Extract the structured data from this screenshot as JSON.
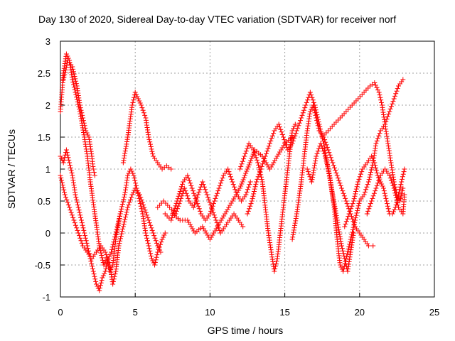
{
  "chart_data": {
    "type": "scatter",
    "title": "Day 130 of 2020, Sidereal Day-to-day VTEC variation (SDTVAR) for receiver norf",
    "xlabel": "GPS time / hours",
    "ylabel": "SDTVAR / TECUs",
    "xlim": [
      0,
      25
    ],
    "ylim": [
      -1,
      3
    ],
    "xticks": [
      "0",
      "5",
      "10",
      "15",
      "20",
      "25"
    ],
    "yticks": [
      "-1",
      "-0.5",
      "0",
      "0.5",
      "1",
      "1.5",
      "2",
      "2.5",
      "3"
    ],
    "grid": true,
    "marker": "+",
    "color": "#ff0000",
    "series": [
      {
        "name": "track-1",
        "points": [
          [
            0,
            1.9
          ],
          [
            0.2,
            2.5
          ],
          [
            0.4,
            2.8
          ],
          [
            0.6,
            2.7
          ],
          [
            0.8,
            2.4
          ],
          [
            1.0,
            2.2
          ],
          [
            1.3,
            1.9
          ],
          [
            1.6,
            1.5
          ],
          [
            1.8,
            1.2
          ],
          [
            2.0,
            0.8
          ],
          [
            2.3,
            0.3
          ],
          [
            2.6,
            -0.2
          ],
          [
            2.9,
            -0.5
          ],
          [
            3.1,
            -0.4
          ],
          [
            3.3,
            -0.6
          ],
          [
            3.5,
            -0.5
          ],
          [
            3.7,
            -0.1
          ],
          [
            4.0,
            0.3
          ],
          [
            4.3,
            0.6
          ],
          [
            4.5,
            0.9
          ],
          [
            4.7,
            1.0
          ],
          [
            4.9,
            0.9
          ],
          [
            5.1,
            0.7
          ],
          [
            5.3,
            0.5
          ],
          [
            5.5,
            0.3
          ],
          [
            5.7,
            0.0
          ],
          [
            5.9,
            -0.2
          ],
          [
            6.1,
            -0.4
          ],
          [
            6.3,
            -0.5
          ],
          [
            6.5,
            -0.3
          ],
          [
            6.8,
            -0.1
          ],
          [
            7.0,
            0.0
          ]
        ]
      },
      {
        "name": "track-2",
        "points": [
          [
            0,
            0.9
          ],
          [
            0.3,
            0.6
          ],
          [
            0.6,
            0.4
          ],
          [
            0.9,
            0.2
          ],
          [
            1.2,
            0.0
          ],
          [
            1.5,
            -0.2
          ],
          [
            1.8,
            -0.3
          ],
          [
            2.1,
            -0.4
          ],
          [
            2.4,
            -0.3
          ],
          [
            2.7,
            -0.2
          ],
          [
            3.0,
            -0.3
          ],
          [
            3.3,
            -0.5
          ],
          [
            3.5,
            -0.8
          ],
          [
            3.7,
            -0.6
          ],
          [
            3.9,
            -0.2
          ],
          [
            4.2,
            0.1
          ],
          [
            4.5,
            0.4
          ],
          [
            4.8,
            0.6
          ],
          [
            5.0,
            0.7
          ],
          [
            5.3,
            0.6
          ],
          [
            5.6,
            0.4
          ],
          [
            5.9,
            0.2
          ],
          [
            6.2,
            0.0
          ],
          [
            6.5,
            -0.2
          ],
          [
            6.7,
            -0.3
          ]
        ]
      },
      {
        "name": "track-3",
        "points": [
          [
            0,
            1.2
          ],
          [
            0.2,
            1.1
          ],
          [
            0.4,
            1.3
          ],
          [
            0.6,
            1.1
          ],
          [
            0.8,
            0.9
          ],
          [
            1.0,
            0.6
          ],
          [
            1.2,
            0.4
          ],
          [
            1.4,
            0.2
          ],
          [
            1.6,
            0.0
          ],
          [
            1.8,
            -0.2
          ],
          [
            2.0,
            -0.4
          ],
          [
            2.2,
            -0.6
          ],
          [
            2.4,
            -0.8
          ],
          [
            2.6,
            -0.9
          ],
          [
            2.8,
            -0.7
          ],
          [
            3.0,
            -0.6
          ],
          [
            3.2,
            -0.4
          ],
          [
            3.4,
            -0.3
          ],
          [
            3.6,
            -0.1
          ],
          [
            3.8,
            0.1
          ],
          [
            4.0,
            0.3
          ]
        ]
      },
      {
        "name": "track-4",
        "points": [
          [
            0.2,
            2.4
          ],
          [
            0.5,
            2.7
          ],
          [
            0.8,
            2.6
          ],
          [
            1.1,
            2.3
          ],
          [
            1.3,
            2.0
          ],
          [
            1.5,
            1.8
          ],
          [
            1.7,
            1.6
          ],
          [
            1.9,
            1.5
          ],
          [
            2.1,
            1.2
          ],
          [
            2.2,
            1.0
          ],
          [
            2.3,
            0.9
          ]
        ]
      },
      {
        "name": "track-5",
        "points": [
          [
            4.2,
            1.1
          ],
          [
            4.5,
            1.5
          ],
          [
            4.8,
            2.0
          ],
          [
            5.0,
            2.2
          ],
          [
            5.2,
            2.1
          ],
          [
            5.4,
            2.0
          ],
          [
            5.7,
            1.8
          ],
          [
            5.9,
            1.5
          ],
          [
            6.2,
            1.2
          ],
          [
            6.5,
            1.1
          ],
          [
            6.8,
            1.0
          ],
          [
            7.1,
            1.05
          ],
          [
            7.4,
            1.0
          ]
        ]
      },
      {
        "name": "track-6",
        "points": [
          [
            6.5,
            0.4
          ],
          [
            6.9,
            0.5
          ],
          [
            7.3,
            0.4
          ],
          [
            7.7,
            0.3
          ],
          [
            8.0,
            0.5
          ],
          [
            8.3,
            0.7
          ],
          [
            8.6,
            0.5
          ],
          [
            8.9,
            0.4
          ],
          [
            9.2,
            0.6
          ],
          [
            9.5,
            0.8
          ],
          [
            9.8,
            0.6
          ],
          [
            10.1,
            0.4
          ],
          [
            10.4,
            0.2
          ],
          [
            10.7,
            0.0
          ],
          [
            11.0,
            0.1
          ],
          [
            11.3,
            0.2
          ],
          [
            11.6,
            0.3
          ],
          [
            11.9,
            0.2
          ],
          [
            12.2,
            0.1
          ]
        ]
      },
      {
        "name": "track-7",
        "points": [
          [
            7.0,
            0.3
          ],
          [
            7.4,
            0.2
          ],
          [
            7.8,
            0.5
          ],
          [
            8.2,
            0.8
          ],
          [
            8.5,
            0.9
          ],
          [
            8.8,
            0.7
          ],
          [
            9.1,
            0.5
          ],
          [
            9.4,
            0.3
          ],
          [
            9.7,
            0.2
          ],
          [
            10.0,
            0.3
          ],
          [
            10.3,
            0.5
          ],
          [
            10.6,
            0.7
          ],
          [
            10.9,
            0.9
          ],
          [
            11.2,
            1.0
          ],
          [
            11.5,
            0.8
          ],
          [
            11.8,
            0.6
          ],
          [
            12.1,
            0.5
          ],
          [
            12.4,
            0.6
          ],
          [
            12.7,
            0.8
          ]
        ]
      },
      {
        "name": "track-8",
        "points": [
          [
            7.5,
            0.3
          ],
          [
            8.0,
            0.2
          ],
          [
            8.5,
            0.2
          ],
          [
            9.0,
            0.0
          ],
          [
            9.5,
            0.1
          ],
          [
            10.0,
            -0.1
          ],
          [
            10.5,
            0.1
          ],
          [
            11.0,
            0.3
          ],
          [
            11.5,
            0.5
          ],
          [
            12.0,
            0.7
          ],
          [
            12.5,
            1.0
          ],
          [
            13.0,
            1.3
          ],
          [
            13.5,
            1.2
          ],
          [
            14.0,
            1.0
          ],
          [
            14.5,
            1.2
          ],
          [
            15.0,
            1.4
          ],
          [
            15.5,
            1.5
          ]
        ]
      },
      {
        "name": "track-9",
        "points": [
          [
            12.0,
            1.0
          ],
          [
            12.3,
            1.2
          ],
          [
            12.6,
            1.4
          ],
          [
            12.9,
            1.3
          ],
          [
            13.2,
            1.1
          ],
          [
            13.5,
            0.8
          ],
          [
            13.7,
            0.4
          ],
          [
            13.9,
            0.0
          ],
          [
            14.1,
            -0.3
          ],
          [
            14.3,
            -0.6
          ],
          [
            14.5,
            -0.4
          ],
          [
            14.7,
            0.0
          ],
          [
            14.9,
            0.4
          ],
          [
            15.1,
            0.8
          ],
          [
            15.3,
            1.2
          ],
          [
            15.5,
            1.6
          ],
          [
            15.7,
            1.7
          ]
        ]
      },
      {
        "name": "track-10",
        "points": [
          [
            12.5,
            0.3
          ],
          [
            12.8,
            0.5
          ],
          [
            13.1,
            0.8
          ],
          [
            13.4,
            1.0
          ],
          [
            13.7,
            1.2
          ],
          [
            14.0,
            1.4
          ],
          [
            14.3,
            1.6
          ],
          [
            14.6,
            1.7
          ],
          [
            14.9,
            1.5
          ],
          [
            15.2,
            1.3
          ],
          [
            15.5,
            1.4
          ],
          [
            15.8,
            1.6
          ],
          [
            16.1,
            1.8
          ],
          [
            16.4,
            2.0
          ],
          [
            16.7,
            2.2
          ],
          [
            17.0,
            2.0
          ],
          [
            17.3,
            1.7
          ],
          [
            17.6,
            1.4
          ],
          [
            17.9,
            1.0
          ],
          [
            18.2,
            0.6
          ],
          [
            18.5,
            0.2
          ],
          [
            18.8,
            -0.2
          ],
          [
            19.0,
            -0.4
          ],
          [
            19.2,
            -0.6
          ],
          [
            19.4,
            -0.3
          ],
          [
            19.6,
            0.0
          ]
        ]
      },
      {
        "name": "track-11",
        "points": [
          [
            15.5,
            -0.1
          ],
          [
            15.8,
            0.3
          ],
          [
            16.1,
            0.8
          ],
          [
            16.3,
            1.2
          ],
          [
            16.5,
            1.6
          ],
          [
            16.7,
            1.9
          ],
          [
            16.9,
            2.0
          ],
          [
            17.1,
            1.8
          ],
          [
            17.3,
            1.6
          ],
          [
            17.6,
            1.5
          ],
          [
            17.9,
            1.3
          ],
          [
            18.2,
            1.1
          ],
          [
            18.5,
            0.9
          ],
          [
            18.8,
            0.7
          ],
          [
            19.1,
            0.5
          ],
          [
            19.4,
            0.3
          ],
          [
            19.7,
            0.1
          ],
          [
            20.0,
            0.0
          ],
          [
            20.3,
            -0.1
          ],
          [
            20.6,
            -0.2
          ],
          [
            20.9,
            -0.2
          ]
        ]
      },
      {
        "name": "track-12",
        "points": [
          [
            16.5,
            1.0
          ],
          [
            16.8,
            0.8
          ],
          [
            17.1,
            1.2
          ],
          [
            17.4,
            1.4
          ],
          [
            17.7,
            1.2
          ],
          [
            18.0,
            0.9
          ],
          [
            18.3,
            0.4
          ],
          [
            18.5,
            -0.1
          ],
          [
            18.7,
            -0.5
          ],
          [
            18.9,
            -0.6
          ],
          [
            19.1,
            -0.4
          ],
          [
            19.4,
            -0.1
          ],
          [
            19.7,
            0.2
          ],
          [
            20.0,
            0.5
          ],
          [
            20.3,
            0.6
          ],
          [
            20.6,
            0.8
          ],
          [
            20.9,
            1.1
          ],
          [
            21.1,
            1.4
          ],
          [
            21.4,
            1.6
          ],
          [
            21.7,
            1.7
          ],
          [
            22.0,
            1.9
          ],
          [
            22.3,
            2.1
          ],
          [
            22.6,
            2.3
          ],
          [
            22.9,
            2.4
          ]
        ]
      },
      {
        "name": "track-13",
        "points": [
          [
            17.5,
            1.5
          ],
          [
            17.9,
            1.6
          ],
          [
            18.3,
            1.7
          ],
          [
            18.7,
            1.8
          ],
          [
            19.1,
            1.9
          ],
          [
            19.5,
            2.0
          ],
          [
            19.9,
            2.1
          ],
          [
            20.3,
            2.2
          ],
          [
            20.7,
            2.3
          ],
          [
            21.0,
            2.35
          ],
          [
            21.3,
            2.2
          ],
          [
            21.5,
            2.0
          ],
          [
            21.7,
            1.7
          ],
          [
            21.9,
            1.4
          ],
          [
            22.1,
            1.1
          ],
          [
            22.3,
            0.8
          ],
          [
            22.5,
            0.6
          ],
          [
            22.7,
            0.5
          ],
          [
            22.9,
            0.7
          ]
        ]
      },
      {
        "name": "track-14",
        "points": [
          [
            19.0,
            0.1
          ],
          [
            19.3,
            0.3
          ],
          [
            19.6,
            0.5
          ],
          [
            19.9,
            0.8
          ],
          [
            20.2,
            1.0
          ],
          [
            20.5,
            1.1
          ],
          [
            20.8,
            1.2
          ],
          [
            21.0,
            1.1
          ],
          [
            21.2,
            0.9
          ],
          [
            21.4,
            0.8
          ],
          [
            21.6,
            0.7
          ],
          [
            21.8,
            0.5
          ],
          [
            22.0,
            0.3
          ],
          [
            22.2,
            0.3
          ],
          [
            22.4,
            0.4
          ],
          [
            22.6,
            0.6
          ],
          [
            22.8,
            0.8
          ],
          [
            23.0,
            1.0
          ]
        ]
      },
      {
        "name": "track-15",
        "points": [
          [
            20.5,
            0.3
          ],
          [
            20.8,
            0.5
          ],
          [
            21.1,
            0.7
          ],
          [
            21.4,
            0.9
          ],
          [
            21.7,
            1.0
          ],
          [
            22.0,
            0.9
          ],
          [
            22.3,
            0.7
          ],
          [
            22.6,
            0.4
          ],
          [
            22.9,
            0.3
          ],
          [
            23.0,
            0.6
          ]
        ]
      }
    ]
  }
}
